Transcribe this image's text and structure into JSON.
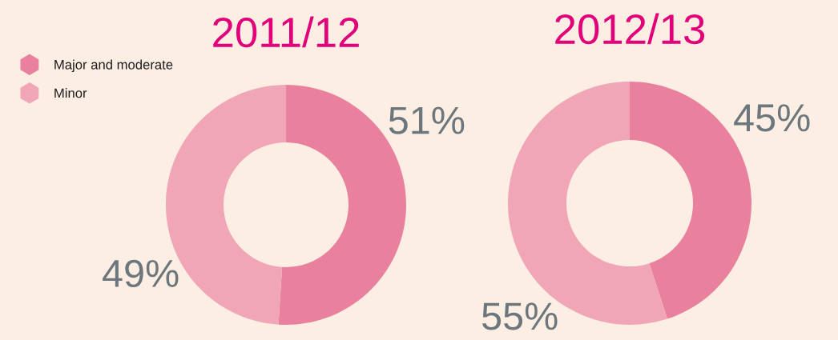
{
  "chart_data": [
    {
      "type": "donut",
      "title": "2011/12",
      "categories": [
        "Major and moderate",
        "Minor"
      ],
      "values": [
        51,
        49
      ],
      "colors": [
        "#e9819e",
        "#f0a6b6"
      ],
      "value_labels": [
        "51%",
        "49%"
      ],
      "legend": "top left"
    },
    {
      "type": "donut",
      "title": "2012/13",
      "categories": [
        null,
        null
      ],
      "values": [
        45,
        55
      ],
      "colors": [
        "#e9819e",
        "#f0a6b6"
      ],
      "value_labels": [
        "45%",
        "55%"
      ]
    }
  ]
}
